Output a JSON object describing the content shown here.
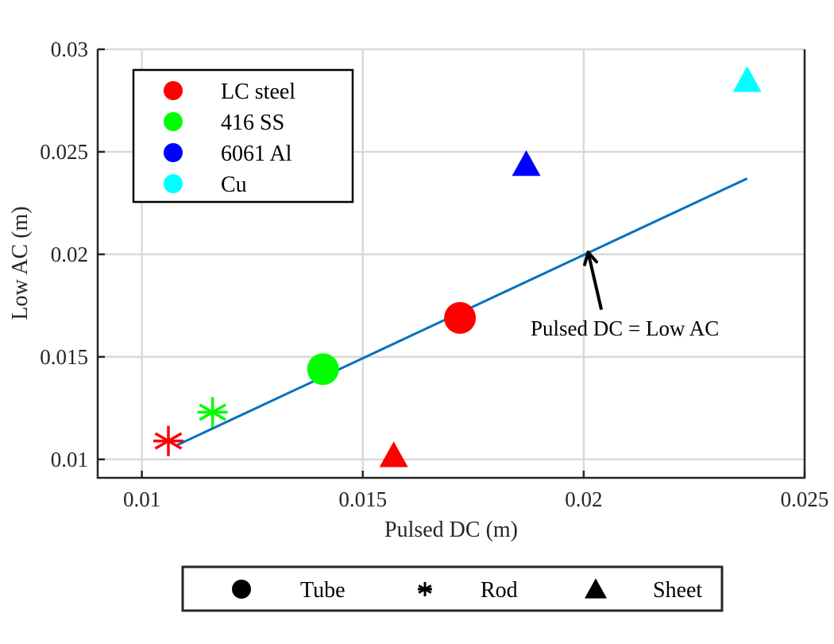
{
  "chart_data": {
    "type": "scatter",
    "xlabel": "Pulsed DC (m)",
    "ylabel": "Low AC (m)",
    "xlim": [
      0.009,
      0.025
    ],
    "ylim": [
      0.0091,
      0.03
    ],
    "x_ticks": [
      0.01,
      0.015,
      0.02,
      0.025
    ],
    "x_tick_labels": [
      "0.01",
      "0.015",
      "0.02",
      "0.025"
    ],
    "y_ticks": [
      0.01,
      0.015,
      0.02,
      0.025,
      0.03
    ],
    "y_tick_labels": [
      "0.01",
      "0.015",
      "0.02",
      "0.025",
      "0.03"
    ],
    "grid": true,
    "material_legend": {
      "placement": "top-left",
      "entries": [
        {
          "label": "LC steel",
          "color": "#ff0000"
        },
        {
          "label": "416 SS",
          "color": "#00ff00"
        },
        {
          "label": "6061 Al",
          "color": "#0000ff"
        },
        {
          "label": "Cu",
          "color": "#00ffff"
        }
      ]
    },
    "shape_legend": {
      "placement": "bottom",
      "entries": [
        {
          "label": "Tube",
          "marker": "circle"
        },
        {
          "label": "Rod",
          "marker": "asterisk"
        },
        {
          "label": "Sheet",
          "marker": "triangle"
        }
      ]
    },
    "points": [
      {
        "material": "LC steel",
        "shape": "Tube",
        "x": 0.0172,
        "y": 0.0169,
        "color": "#ff0000"
      },
      {
        "material": "416 SS",
        "shape": "Tube",
        "x": 0.0141,
        "y": 0.0144,
        "color": "#00ff00"
      },
      {
        "material": "LC steel",
        "shape": "Rod",
        "x": 0.0106,
        "y": 0.0109,
        "color": "#ff0000"
      },
      {
        "material": "416 SS",
        "shape": "Rod",
        "x": 0.0116,
        "y": 0.0123,
        "color": "#00ff00"
      },
      {
        "material": "LC steel",
        "shape": "Sheet",
        "x": 0.0157,
        "y": 0.0101,
        "color": "#ff0000"
      },
      {
        "material": "6061 Al",
        "shape": "Sheet",
        "x": 0.0187,
        "y": 0.0243,
        "color": "#0000ff"
      },
      {
        "material": "Cu",
        "shape": "Sheet",
        "x": 0.0237,
        "y": 0.0284,
        "color": "#00ffff"
      }
    ],
    "fit_line": {
      "x": [
        0.0108,
        0.0237
      ],
      "y": [
        0.0107,
        0.0237
      ],
      "color": "#0072bd"
    },
    "annotation": {
      "text": "Pulsed DC = Low AC",
      "arrow_tip": [
        0.0201,
        0.0201
      ],
      "arrow_tail": [
        0.0204,
        0.0173
      ]
    }
  }
}
